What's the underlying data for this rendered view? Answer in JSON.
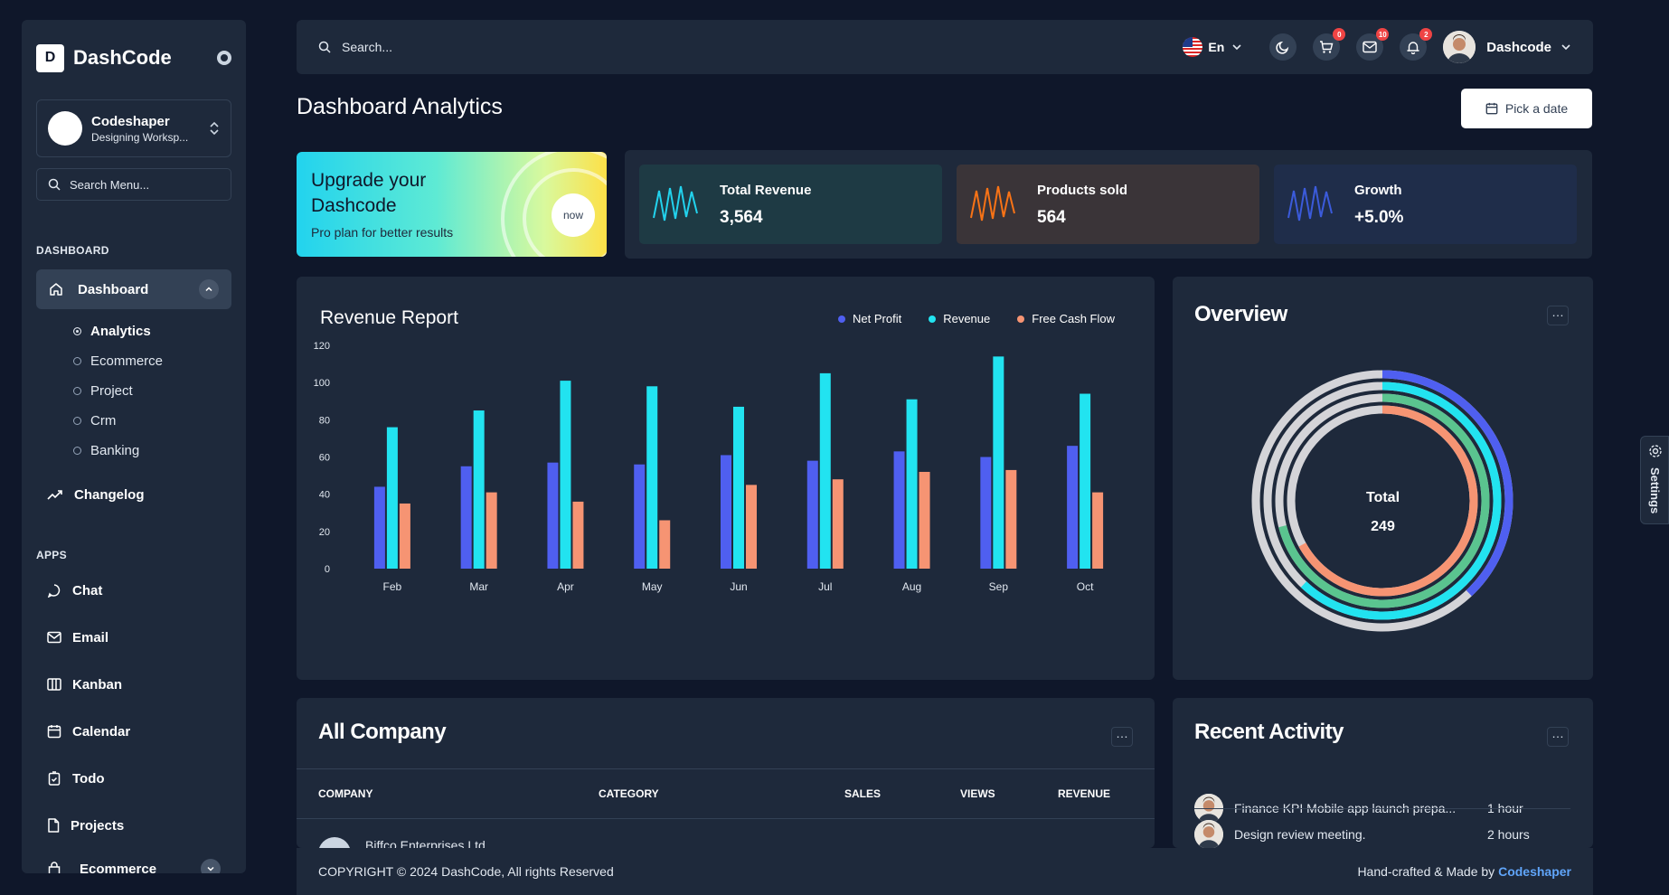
{
  "brand": {
    "name": "DashCode",
    "logo_text": "D"
  },
  "workspace": {
    "name": "Codeshaper",
    "subtitle": "Designing Worksp..."
  },
  "sidebar": {
    "search_placeholder": "Search Menu...",
    "section_dashboard": "DASHBOARD",
    "dashboard_label": "Dashboard",
    "sub_items": [
      "Analytics",
      "Ecommerce",
      "Project",
      "Crm",
      "Banking"
    ],
    "changelog": "Changelog",
    "section_apps": "APPS",
    "apps": [
      "Chat",
      "Email",
      "Kanban",
      "Calendar",
      "Todo",
      "Projects",
      "Ecommerce"
    ]
  },
  "header": {
    "search_placeholder": "Search...",
    "language": "En",
    "cart_badge": "0",
    "mail_badge": "10",
    "bell_badge": "2",
    "user_name": "Dashcode"
  },
  "page": {
    "title": "Dashboard Analytics",
    "date_button": "Pick a date"
  },
  "upgrade": {
    "title": "Upgrade your Dashcode",
    "subtitle": "Pro plan for better results",
    "button": "now"
  },
  "stats": [
    {
      "label": "Total Revenue",
      "value": "3,564",
      "color": "#22d3ee",
      "bg": "#1e3a44"
    },
    {
      "label": "Products sold",
      "value": "564",
      "color": "#f97316",
      "bg": "#3a3438"
    },
    {
      "label": "Growth",
      "value": "+5.0%",
      "color": "#3b5bdb",
      "bg": "#1f2d4a"
    }
  ],
  "revenue_report": {
    "title": "Revenue Report",
    "legend": [
      "Net Profit",
      "Revenue",
      "Free Cash Flow"
    ]
  },
  "chart_data": {
    "type": "bar",
    "title": "Revenue Report",
    "categories": [
      "Feb",
      "Mar",
      "Apr",
      "May",
      "Jun",
      "Jul",
      "Aug",
      "Sep",
      "Oct"
    ],
    "series": [
      {
        "name": "Net Profit",
        "color": "#4f5ff0",
        "values": [
          44,
          55,
          57,
          56,
          61,
          58,
          63,
          60,
          66
        ]
      },
      {
        "name": "Revenue",
        "color": "#22e3f0",
        "values": [
          76,
          85,
          101,
          98,
          87,
          105,
          91,
          114,
          94
        ]
      },
      {
        "name": "Free Cash Flow",
        "color": "#f69473",
        "values": [
          35,
          41,
          36,
          26,
          45,
          48,
          52,
          53,
          41
        ]
      }
    ],
    "y_ticks": [
      0,
      20,
      40,
      60,
      80,
      100,
      120
    ],
    "ylim": [
      0,
      120
    ],
    "legend_position": "top-right",
    "grid": false
  },
  "overview": {
    "title": "Overview",
    "total_label": "Total",
    "total_value": "249",
    "rings": [
      {
        "fraction": 0.38,
        "color": "#4f5ff0"
      },
      {
        "fraction": 0.62,
        "color": "#22e3f0"
      },
      {
        "fraction": 0.71,
        "color": "#5ac48f"
      },
      {
        "fraction": 0.67,
        "color": "#f69473"
      }
    ],
    "track_color": "#d4d4d8"
  },
  "company": {
    "title": "All Company",
    "columns": [
      "COMPANY",
      "CATEGORY",
      "SALES",
      "VIEWS",
      "REVENUE"
    ],
    "first_row": "Biffco Enterprises Ltd."
  },
  "activity": {
    "title": "Recent Activity",
    "items": [
      {
        "text": "Finance KPI Mobile app launch prepa...",
        "time": "1 hour"
      },
      {
        "text": "Design review meeting.",
        "time": "2 hours"
      }
    ]
  },
  "footer": {
    "copyright": "COPYRIGHT © 2024 DashCode, All rights Reserved",
    "credit_prefix": "Hand-crafted & Made by",
    "credit_link": "Codeshaper"
  },
  "settings_tab": "Settings"
}
